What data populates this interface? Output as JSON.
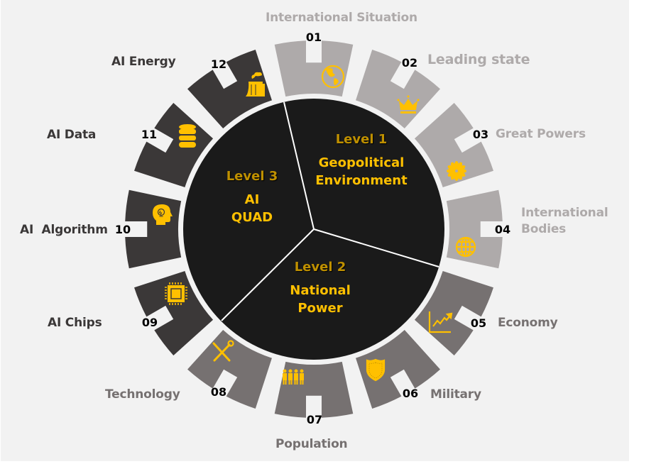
{
  "colors": {
    "background": "#f2f2f2",
    "center_circle": "#1a1a1a",
    "accent_yellow": "#ffc000",
    "level_gold": "#bf9000",
    "group_1": "#aeaaaa",
    "group_2": "#767171",
    "group_3": "#3b3838",
    "number_text": "#000000"
  },
  "center": {
    "levels": [
      {
        "level": "Level 1",
        "title_line1": "Geopolitical",
        "title_line2": "Environment"
      },
      {
        "level": "Level 2",
        "title_line1": "National",
        "title_line2": "Power"
      },
      {
        "level": "Level 3",
        "title_line1": "AI",
        "title_line2": "QUAD"
      }
    ]
  },
  "segments": [
    {
      "number": "01",
      "label": "International Situation",
      "group": 1,
      "icon": "globe-americas-icon"
    },
    {
      "number": "02",
      "label": "Leading state",
      "group": 1,
      "icon": "crown-icon"
    },
    {
      "number": "03",
      "label": "Great Powers",
      "group": 1,
      "icon": "flower-icon"
    },
    {
      "number": "04",
      "label_line1": "International",
      "label_line2": "Bodies",
      "group": 1,
      "icon": "globe-grid-icon"
    },
    {
      "number": "05",
      "label": "Economy",
      "group": 2,
      "icon": "growth-chart-icon"
    },
    {
      "number": "06",
      "label": "Military",
      "group": 2,
      "icon": "shield-icon"
    },
    {
      "number": "07",
      "label": "Population",
      "group": 2,
      "icon": "people-icon"
    },
    {
      "number": "08",
      "label": "Technology",
      "group": 2,
      "icon": "tools-icon"
    },
    {
      "number": "09",
      "label": "AI Chips",
      "group": 3,
      "icon": "chip-icon"
    },
    {
      "number": "10",
      "label": "AI  Algorithm",
      "group": 3,
      "icon": "head-lightbulb-icon"
    },
    {
      "number": "11",
      "label": "AI Data",
      "group": 3,
      "icon": "database-icon"
    },
    {
      "number": "12",
      "label": "AI Energy",
      "group": 3,
      "icon": "power-plant-icon"
    }
  ]
}
